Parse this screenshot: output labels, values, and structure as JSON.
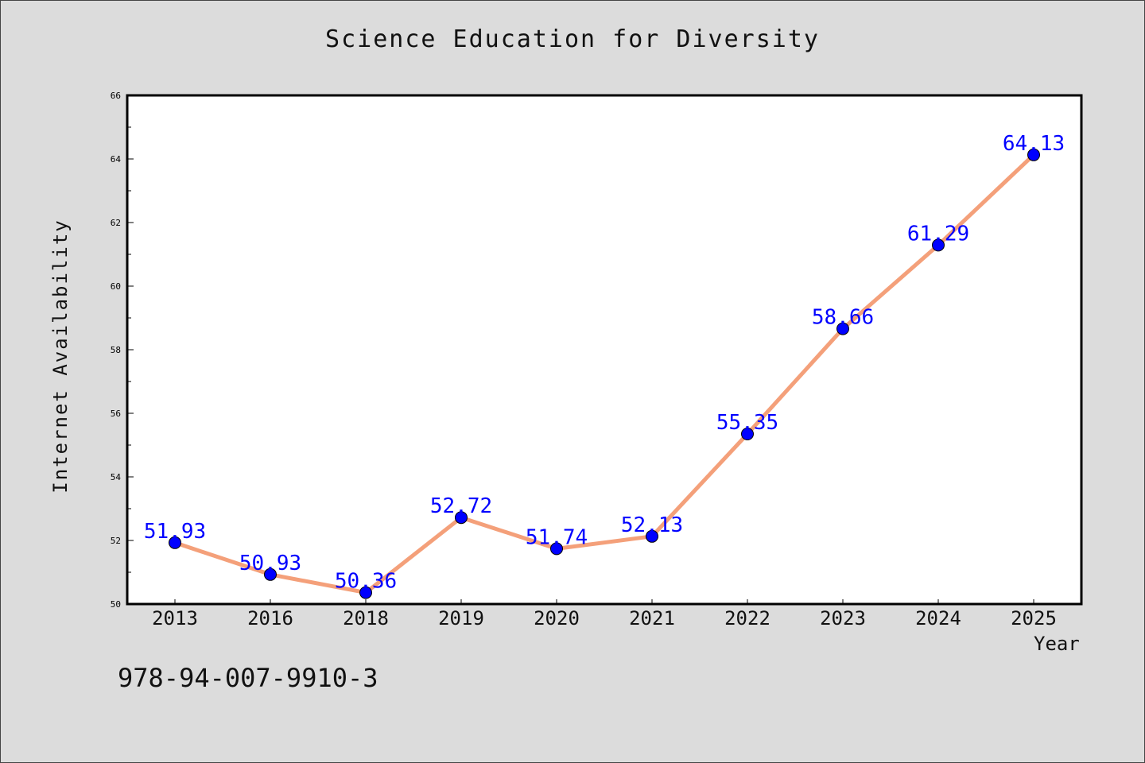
{
  "chart_data": {
    "type": "line",
    "title": "Science Education for Diversity",
    "xlabel": "Year",
    "ylabel": "Internet Availability",
    "categories": [
      "2013",
      "2016",
      "2018",
      "2019",
      "2020",
      "2021",
      "2022",
      "2023",
      "2024",
      "2025"
    ],
    "series": [
      {
        "values": [
          51.93,
          50.93,
          50.36,
          52.72,
          51.74,
          52.13,
          55.35,
          58.66,
          61.29,
          64.13
        ],
        "labels": [
          "51.93",
          "50.93",
          "50.36",
          "52.72",
          "51.74",
          "52.13",
          "55.35",
          "58.66",
          "61.29",
          "64.13"
        ],
        "line_color": "#f4a07a",
        "marker_color": "#0000ff",
        "label_color": "#0000ff"
      }
    ],
    "ylim": [
      50,
      66
    ],
    "yticks": [
      "50",
      "52",
      "54",
      "56",
      "58",
      "60",
      "62",
      "64",
      "66"
    ],
    "grid": false,
    "legend": "none"
  },
  "footer": {
    "isbn": "978-94-007-9910-3"
  },
  "colors": {
    "background": "#dcdcdc",
    "plot_background": "#ffffff"
  }
}
